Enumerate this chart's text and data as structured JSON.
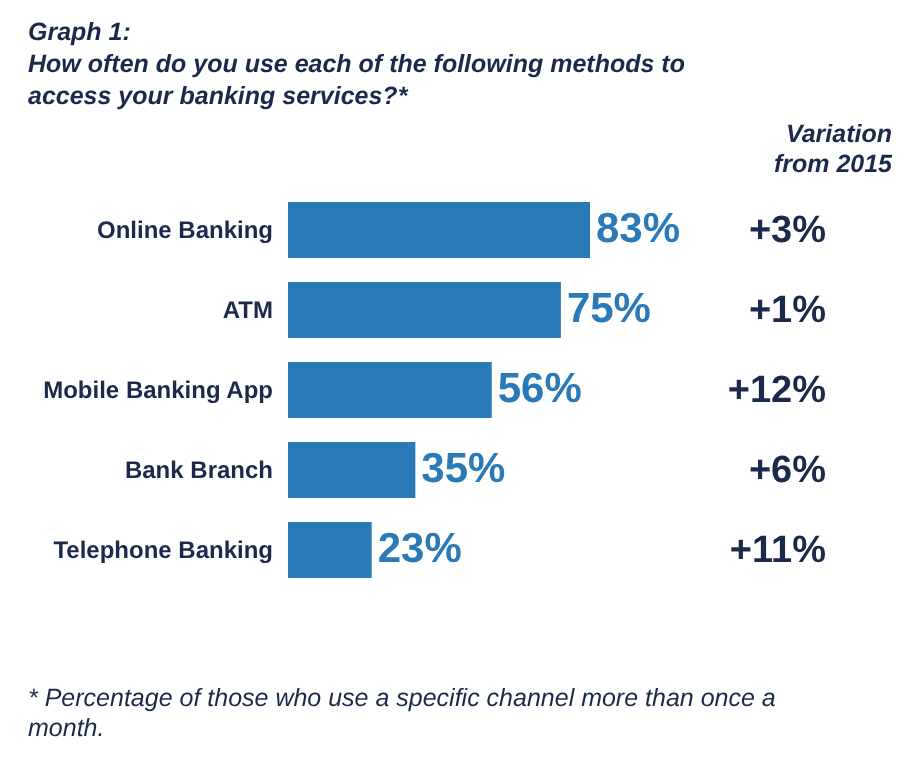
{
  "chart_data": {
    "type": "bar",
    "orientation": "horizontal",
    "title": "Graph 1:",
    "subtitle": "How often do you use each of the following methods to access your banking services?*",
    "categories": [
      "Online Banking",
      "ATM",
      "Mobile Banking App",
      "Bank Branch",
      "Telephone Banking"
    ],
    "values": [
      83,
      75,
      56,
      35,
      23
    ],
    "color": "#2a7ab8",
    "value_labels": [
      "83%",
      "75%",
      "56%",
      "35%",
      "23%"
    ],
    "annotations": [
      "Variation from 2015",
      "+3%",
      "+1%",
      "+12%",
      "+6%",
      "+11%",
      "* Percentage of those who use a specific channel more than once a month."
    ]
  }
}
